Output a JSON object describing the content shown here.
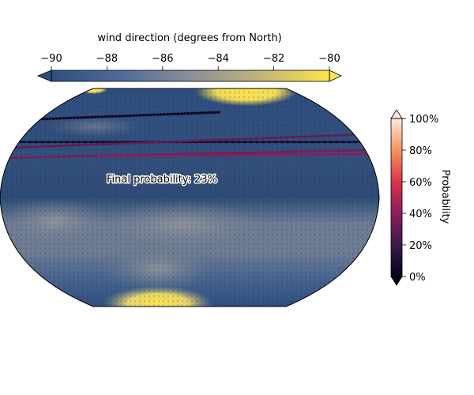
{
  "chart_data": {
    "type": "heatmap",
    "projection": "Robinson (global, cropped to mid-latitudes)",
    "field": {
      "label": "wind direction (degrees from North)",
      "vmin": -90,
      "vmax": -80,
      "ticks": [
        "−90",
        "−88",
        "−86",
        "−84",
        "−82",
        "−80"
      ],
      "tick_values": [
        -90,
        -88,
        -86,
        -84,
        -82,
        -80
      ],
      "colormap": "cividis",
      "extend": "both",
      "colors": [
        "#2f4f7e",
        "#4f6b9a",
        "#8a8f96",
        "#c2b47a",
        "#fbe54a"
      ]
    },
    "probability": {
      "label": "Probability",
      "vmin": 0,
      "vmax": 100,
      "ticks": [
        "0%",
        "20%",
        "40%",
        "60%",
        "80%",
        "100%"
      ],
      "tick_values": [
        0,
        20,
        40,
        60,
        80,
        100
      ],
      "colormap": "rocket",
      "extend": "both",
      "colors": [
        "#03051a",
        "#3b1a4c",
        "#8b1d5b",
        "#d9344a",
        "#f6935e",
        "#faebdd"
      ]
    },
    "tracks": [
      {
        "start_lon": -180,
        "start_lat": 39,
        "end_lon": 30,
        "end_lat": 43,
        "probability": 5
      },
      {
        "start_lon": -180,
        "start_lat": 28,
        "end_lon": 180,
        "end_lat": 28,
        "probability": 8
      },
      {
        "start_lon": -180,
        "start_lat": 25,
        "end_lon": 180,
        "end_lat": 32,
        "probability": 30
      },
      {
        "start_lon": -180,
        "start_lat": 20,
        "end_lon": 180,
        "end_lat": 24,
        "probability": 35
      },
      {
        "start_lon": -88,
        "start_lat": 21,
        "end_lon": 180,
        "end_lat": 22,
        "probability": 40
      }
    ],
    "annotation": "Final probability: 23%"
  }
}
